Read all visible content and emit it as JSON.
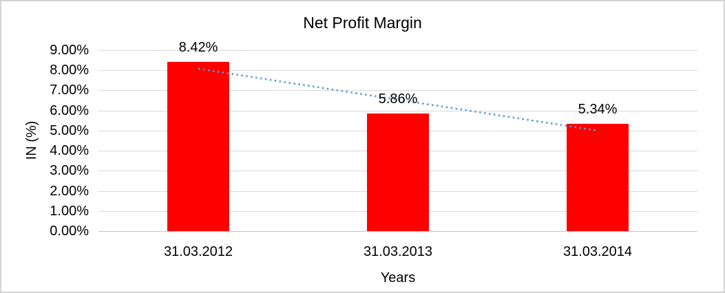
{
  "chart_data": {
    "type": "bar",
    "title": "Net Profit Margin",
    "categories": [
      "31.03.2012",
      "31.03.2013",
      "31.03.2014"
    ],
    "series": [
      {
        "name": "Net Profit Margin",
        "values": [
          8.42,
          5.86,
          5.34
        ]
      }
    ],
    "data_labels": [
      "8.42%",
      "5.86%",
      "5.34%"
    ],
    "xlabel": "Years",
    "ylabel": "IN (%)",
    "ylim": [
      0,
      9
    ],
    "ytick_step": 1,
    "ytick_labels": [
      "0.00%",
      "1.00%",
      "2.00%",
      "3.00%",
      "4.00%",
      "5.00%",
      "6.00%",
      "7.00%",
      "8.00%",
      "9.00%"
    ],
    "grid": true,
    "legend": "none",
    "trendline": {
      "type": "linear",
      "style": "dotted",
      "start_value": 8.08,
      "end_value": 5.0
    }
  },
  "colors": {
    "bar": "#ff0000",
    "trendline": "#5b9bd5",
    "gridline": "#d9d9d9",
    "axis_line": "#c6c6c6",
    "text": "#000000",
    "border": "#d3d3d3",
    "background": "#ffffff"
  }
}
